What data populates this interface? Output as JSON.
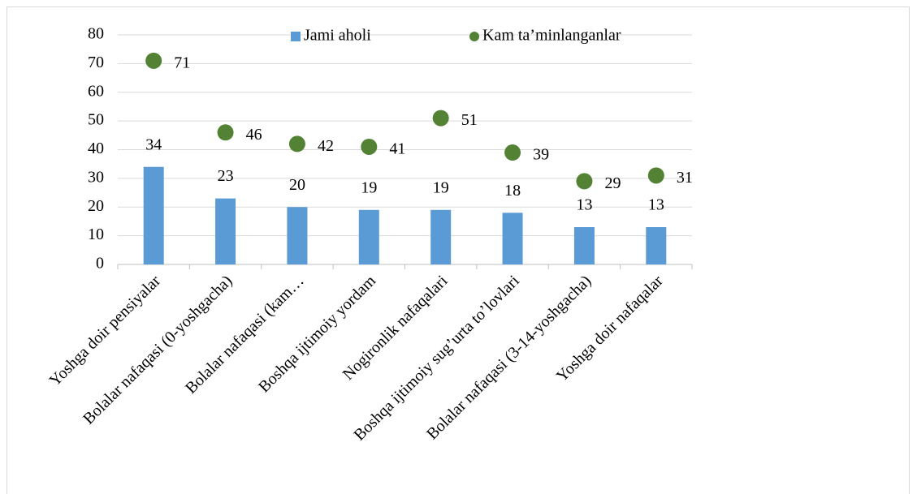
{
  "chart_data": {
    "type": "bar",
    "categories": [
      "Yoshga doir pensiyalar",
      "Bolalar nafaqasi (0-yoshgacha)",
      "Bolalar nafaqasi (kam…",
      "Boshqa ijtimoiy yordam",
      "Nogironlik nafaqalari",
      "Boshqa ijtimoiy sug’urta to’lovlari",
      "Bolalar nafaqasi (3-14-yoshgacha)",
      "Yoshga doir nafaqalar"
    ],
    "series": [
      {
        "name": "Jami aholi",
        "type": "bar",
        "color": "#5b9bd5",
        "values": [
          34,
          23,
          20,
          19,
          19,
          18,
          13,
          13
        ]
      },
      {
        "name": "Kam ta’minlanganlar",
        "type": "scatter",
        "color": "#548235",
        "values": [
          71,
          46,
          42,
          41,
          51,
          39,
          29,
          31
        ]
      }
    ],
    "ylim": [
      0,
      80
    ],
    "yticks": [
      0,
      10,
      20,
      30,
      40,
      50,
      60,
      70,
      80
    ],
    "grid": true,
    "legend": "top"
  }
}
